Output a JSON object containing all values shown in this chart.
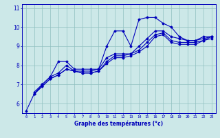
{
  "xlabel": "Graphe des températures (°c)",
  "x_ticks": [
    0,
    1,
    2,
    3,
    4,
    5,
    6,
    7,
    8,
    9,
    10,
    11,
    12,
    13,
    14,
    15,
    16,
    17,
    18,
    19,
    20,
    21,
    22,
    23
  ],
  "ylim": [
    5.5,
    11.2
  ],
  "xlim": [
    -0.5,
    23.5
  ],
  "yticks": [
    6,
    7,
    8,
    9,
    10,
    11
  ],
  "background_color": "#cce8e8",
  "line_color": "#0000bb",
  "lines": [
    [
      5.6,
      6.5,
      7.0,
      7.4,
      8.2,
      8.2,
      7.8,
      7.8,
      7.8,
      7.8,
      9.0,
      9.8,
      9.8,
      9.0,
      10.4,
      10.5,
      10.5,
      10.2,
      10.0,
      9.5,
      9.3,
      9.3,
      9.5,
      9.5
    ],
    [
      null,
      6.6,
      7.0,
      7.4,
      7.6,
      8.0,
      7.7,
      7.7,
      7.7,
      7.8,
      8.4,
      8.6,
      8.6,
      8.6,
      9.0,
      9.4,
      9.8,
      9.8,
      9.5,
      9.4,
      9.3,
      9.3,
      9.4,
      9.5
    ],
    [
      null,
      6.5,
      6.9,
      7.3,
      7.5,
      7.8,
      7.7,
      7.6,
      7.6,
      7.7,
      8.2,
      8.5,
      8.5,
      8.6,
      8.8,
      9.2,
      9.6,
      9.7,
      9.3,
      9.2,
      9.2,
      9.2,
      9.3,
      9.5
    ],
    [
      null,
      6.5,
      6.9,
      7.3,
      7.5,
      7.8,
      7.7,
      7.6,
      7.6,
      7.7,
      8.1,
      8.4,
      8.4,
      8.5,
      8.7,
      9.0,
      9.5,
      9.6,
      9.2,
      9.1,
      9.1,
      9.1,
      9.3,
      9.4
    ]
  ]
}
